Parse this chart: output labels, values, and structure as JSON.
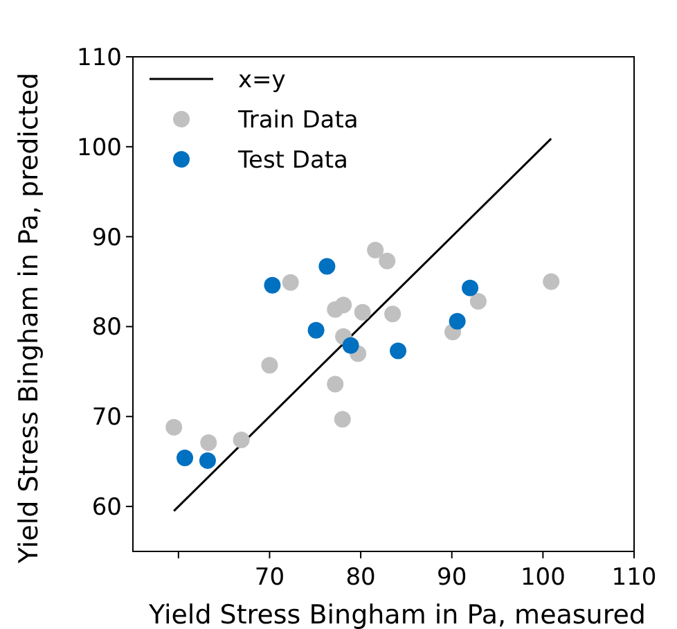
{
  "chart_data": {
    "type": "scatter",
    "xlabel": "Yield Stress Bingham in Pa, measured",
    "ylabel": "Yield Stress Bingham in Pa, predicted",
    "xlim": [
      55,
      110
    ],
    "ylim": [
      55,
      110
    ],
    "xticks": [
      {
        "value": 60,
        "label": null
      },
      70,
      80,
      90,
      100,
      110
    ],
    "yticks": [
      60,
      70,
      80,
      90,
      100,
      110
    ],
    "legend": "top left",
    "grid": false,
    "marker": "circle",
    "series": [
      {
        "name": "x=y",
        "type": "line",
        "color": "#000000",
        "x": [
          59.5,
          100.9
        ],
        "values": [
          59.5,
          100.9
        ],
        "marker": "none",
        "line_style": "solid"
      },
      {
        "name": "Train Data",
        "color": "#c0c0c0",
        "x": [
          59.5,
          63.3,
          66.9,
          70,
          72.3,
          77.2,
          78.1,
          80.2,
          78.1,
          79.7,
          77.2,
          78,
          81.6,
          82.9,
          83.5,
          90.1,
          92.9,
          100.9
        ],
        "values": [
          68.8,
          67.1,
          67.4,
          75.7,
          84.9,
          81.9,
          82.4,
          81.6,
          78.9,
          77,
          73.6,
          69.7,
          88.5,
          87.3,
          81.4,
          79.4,
          82.8,
          85
        ]
      },
      {
        "name": "Test Data",
        "color": "#0070c0",
        "x": [
          60.7,
          63.2,
          70.3,
          76.3,
          75.1,
          78.9,
          84.1,
          90.6,
          92
        ],
        "values": [
          65.4,
          65.1,
          84.6,
          86.7,
          79.6,
          77.9,
          77.3,
          80.6,
          84.3
        ]
      }
    ]
  }
}
